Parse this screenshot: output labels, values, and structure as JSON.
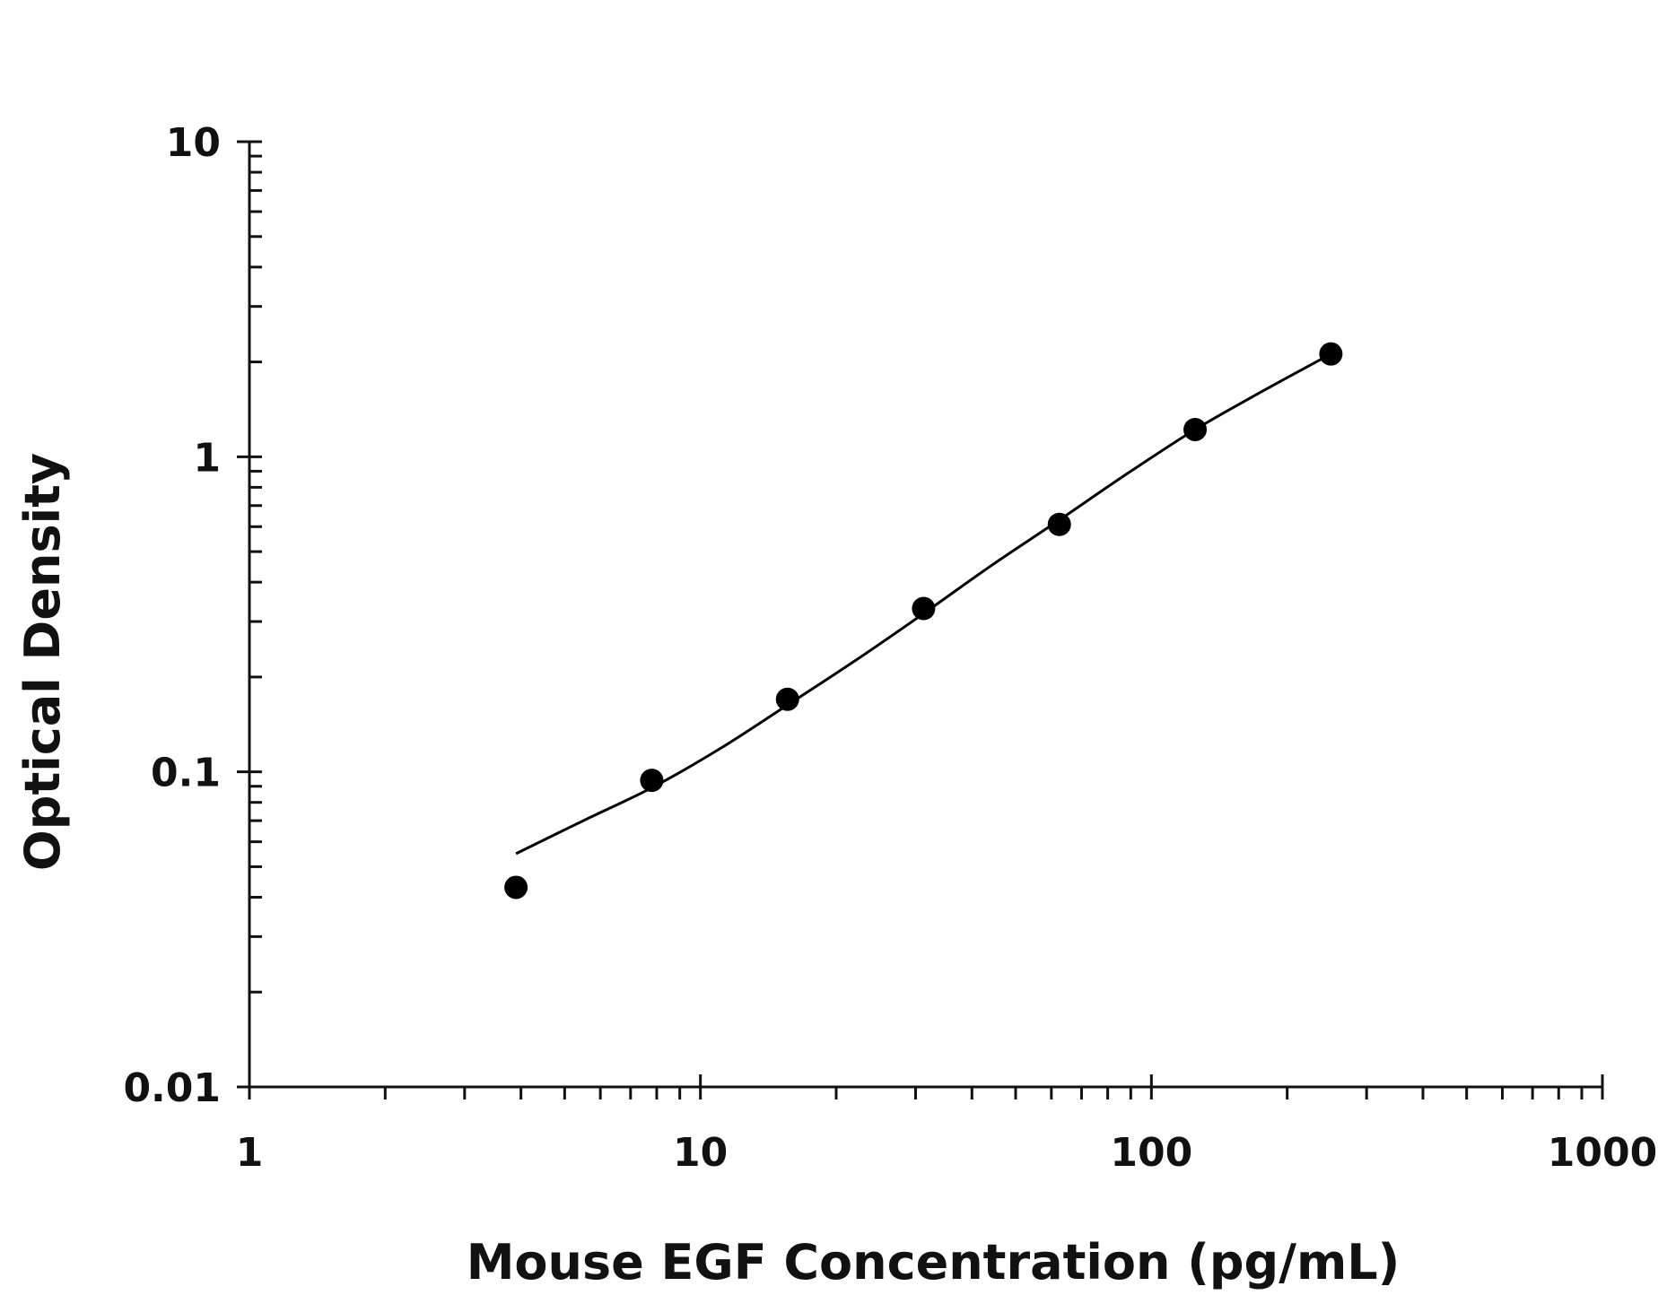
{
  "chart_data": {
    "type": "scatter",
    "title": "",
    "xlabel": "Mouse EGF Concentration (pg/mL)",
    "ylabel": "Optical Density",
    "xscale": "log",
    "yscale": "log",
    "xlim": [
      1,
      1000
    ],
    "ylim": [
      0.01,
      10
    ],
    "x_ticks": [
      {
        "value": 1,
        "label": "1"
      },
      {
        "value": 10,
        "label": "10"
      },
      {
        "value": 100,
        "label": "100"
      },
      {
        "value": 1000,
        "label": "1000"
      }
    ],
    "y_ticks": [
      {
        "value": 0.01,
        "label": "0.01"
      },
      {
        "value": 0.1,
        "label": "0.1"
      },
      {
        "value": 1,
        "label": "1"
      },
      {
        "value": 10,
        "label": "10"
      }
    ],
    "grid": false,
    "legend": "none",
    "series": [
      {
        "marker": "filled-circle",
        "color": "#000000",
        "points": [
          {
            "x": 3.9,
            "y": 0.043
          },
          {
            "x": 7.8,
            "y": 0.094
          },
          {
            "x": 15.6,
            "y": 0.17
          },
          {
            "x": 31.25,
            "y": 0.33
          },
          {
            "x": 62.5,
            "y": 0.61
          },
          {
            "x": 125,
            "y": 1.22
          },
          {
            "x": 250,
            "y": 2.12
          }
        ]
      }
    ],
    "fit_curve": {
      "color": "#000000",
      "points": [
        {
          "x": 3.9,
          "y": 0.055
        },
        {
          "x": 5.5,
          "y": 0.07
        },
        {
          "x": 7.8,
          "y": 0.089
        },
        {
          "x": 11,
          "y": 0.118
        },
        {
          "x": 15.6,
          "y": 0.163
        },
        {
          "x": 22,
          "y": 0.225
        },
        {
          "x": 31.25,
          "y": 0.318
        },
        {
          "x": 44,
          "y": 0.45
        },
        {
          "x": 62.5,
          "y": 0.63
        },
        {
          "x": 88,
          "y": 0.88
        },
        {
          "x": 125,
          "y": 1.22
        },
        {
          "x": 177,
          "y": 1.62
        },
        {
          "x": 250,
          "y": 2.12
        }
      ]
    }
  }
}
